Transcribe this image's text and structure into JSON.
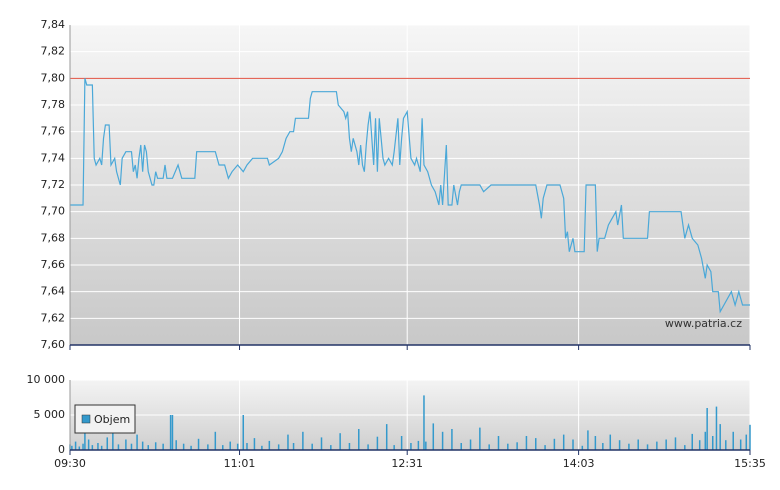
{
  "chart_data": [
    {
      "type": "line",
      "watermark": "www.patria.cz",
      "x": [
        "09:30",
        "09:37",
        "09:38",
        "09:39",
        "09:42",
        "09:43",
        "09:44",
        "09:46",
        "09:47",
        "09:48",
        "09:49",
        "09:51",
        "09:52",
        "09:54",
        "09:55",
        "09:57",
        "09:58",
        "10:00",
        "10:03",
        "10:04",
        "10:05",
        "10:06",
        "10:07",
        "10:08",
        "10:09",
        "10:10",
        "10:11",
        "10:12",
        "10:14",
        "10:15",
        "10:16",
        "10:17",
        "10:20",
        "10:21",
        "10:22",
        "10:25",
        "10:28",
        "10:30",
        "10:37",
        "10:38",
        "10:48",
        "10:50",
        "10:53",
        "10:55",
        "10:57",
        "11:00",
        "11:03",
        "11:05",
        "11:08",
        "11:16",
        "11:17",
        "11:22",
        "11:24",
        "11:26",
        "11:28",
        "11:30",
        "11:31",
        "11:38",
        "11:39",
        "11:40",
        "11:53",
        "11:54",
        "11:57",
        "11:58",
        "11:59",
        "12:00",
        "12:01",
        "12:02",
        "12:04",
        "12:05",
        "12:06",
        "12:07",
        "12:08",
        "12:09",
        "12:10",
        "12:11",
        "12:13",
        "12:14",
        "12:15",
        "12:16",
        "12:18",
        "12:19",
        "12:21",
        "12:23",
        "12:24",
        "12:26",
        "12:27",
        "12:28",
        "12:29",
        "12:31",
        "12:33",
        "12:35",
        "12:36",
        "12:38",
        "12:39",
        "12:40",
        "12:42",
        "12:44",
        "12:46",
        "12:48",
        "12:49",
        "12:50",
        "12:52",
        "12:53",
        "12:55",
        "12:56",
        "12:58",
        "12:59",
        "13:00",
        "13:10",
        "13:12",
        "13:16",
        "13:40",
        "13:42",
        "13:43",
        "13:44",
        "13:46",
        "13:53",
        "13:55",
        "13:56",
        "13:57",
        "13:58",
        "14:00",
        "14:01",
        "14:06",
        "14:07",
        "14:12",
        "14:13",
        "14:14",
        "14:17",
        "14:19",
        "14:21",
        "14:23",
        "14:24",
        "14:26",
        "14:27",
        "14:40",
        "14:41",
        "14:58",
        "15:00",
        "15:02",
        "15:04",
        "15:07",
        "15:09",
        "15:11",
        "15:12",
        "15:14",
        "15:15",
        "15:18",
        "15:19",
        "15:21",
        "15:23",
        "15:25",
        "15:27",
        "15:29",
        "15:31",
        "15:35"
      ],
      "values": [
        7.705,
        7.705,
        7.8,
        7.795,
        7.795,
        7.74,
        7.735,
        7.74,
        7.735,
        7.755,
        7.765,
        7.765,
        7.735,
        7.74,
        7.73,
        7.72,
        7.74,
        7.745,
        7.745,
        7.73,
        7.735,
        7.725,
        7.74,
        7.75,
        7.73,
        7.75,
        7.745,
        7.73,
        7.72,
        7.72,
        7.73,
        7.725,
        7.725,
        7.735,
        7.725,
        7.725,
        7.735,
        7.725,
        7.725,
        7.745,
        7.745,
        7.735,
        7.735,
        7.725,
        7.73,
        7.735,
        7.73,
        7.735,
        7.74,
        7.74,
        7.735,
        7.74,
        7.745,
        7.755,
        7.76,
        7.76,
        7.77,
        7.77,
        7.785,
        7.79,
        7.79,
        7.78,
        7.775,
        7.77,
        7.775,
        7.755,
        7.745,
        7.755,
        7.745,
        7.735,
        7.75,
        7.735,
        7.73,
        7.75,
        7.765,
        7.775,
        7.735,
        7.77,
        7.73,
        7.77,
        7.74,
        7.735,
        7.74,
        7.735,
        7.745,
        7.77,
        7.735,
        7.755,
        7.77,
        7.775,
        7.74,
        7.735,
        7.74,
        7.73,
        7.77,
        7.735,
        7.73,
        7.72,
        7.715,
        7.705,
        7.72,
        7.705,
        7.75,
        7.705,
        7.705,
        7.72,
        7.705,
        7.715,
        7.72,
        7.72,
        7.715,
        7.72,
        7.72,
        7.705,
        7.695,
        7.71,
        7.72,
        7.72,
        7.71,
        7.68,
        7.685,
        7.67,
        7.68,
        7.67,
        7.67,
        7.72,
        7.72,
        7.67,
        7.68,
        7.68,
        7.69,
        7.695,
        7.7,
        7.69,
        7.705,
        7.68,
        7.68,
        7.7,
        7.7,
        7.68,
        7.69,
        7.68,
        7.675,
        7.665,
        7.65,
        7.66,
        7.655,
        7.64,
        7.64,
        7.625,
        7.63,
        7.635,
        7.64,
        7.63,
        7.64,
        7.63,
        7.63
      ],
      "color": "#4aa8d8",
      "reference_line": {
        "value": 7.8,
        "color": "#e05040"
      },
      "xlim": [
        "09:30",
        "15:35"
      ],
      "ylim": [
        7.6,
        7.84
      ],
      "yticks": [
        {
          "value": 7.6,
          "label": "7,60"
        },
        {
          "value": 7.62,
          "label": "7,62"
        },
        {
          "value": 7.64,
          "label": "7,64"
        },
        {
          "value": 7.66,
          "label": "7,66"
        },
        {
          "value": 7.68,
          "label": "7,68"
        },
        {
          "value": 7.7,
          "label": "7,70"
        },
        {
          "value": 7.72,
          "label": "7,72"
        },
        {
          "value": 7.74,
          "label": "7,74"
        },
        {
          "value": 7.76,
          "label": "7,76"
        },
        {
          "value": 7.78,
          "label": "7,78"
        },
        {
          "value": 7.8,
          "label": "7,80"
        },
        {
          "value": 7.82,
          "label": "7,82"
        },
        {
          "value": 7.84,
          "label": "7,84"
        }
      ],
      "grid": true
    },
    {
      "type": "bar",
      "x": [
        "09:30",
        "09:31",
        "09:33",
        "09:35",
        "09:37",
        "09:38",
        "09:40",
        "09:42",
        "09:45",
        "09:47",
        "09:50",
        "09:53",
        "09:56",
        "10:00",
        "10:03",
        "10:06",
        "10:09",
        "10:12",
        "10:16",
        "10:20",
        "10:24",
        "10:25",
        "10:27",
        "10:31",
        "10:35",
        "10:39",
        "10:44",
        "10:48",
        "10:52",
        "10:56",
        "11:00",
        "11:03",
        "11:05",
        "11:09",
        "11:13",
        "11:17",
        "11:22",
        "11:27",
        "11:30",
        "11:35",
        "11:40",
        "11:45",
        "11:50",
        "11:55",
        "12:00",
        "12:05",
        "12:10",
        "12:15",
        "12:20",
        "12:24",
        "12:28",
        "12:33",
        "12:37",
        "12:40",
        "12:41",
        "12:45",
        "12:50",
        "12:55",
        "13:00",
        "13:05",
        "13:10",
        "13:15",
        "13:20",
        "13:25",
        "13:30",
        "13:35",
        "13:40",
        "13:45",
        "13:50",
        "13:55",
        "14:00",
        "14:05",
        "14:08",
        "14:12",
        "14:16",
        "14:20",
        "14:25",
        "14:30",
        "14:35",
        "14:40",
        "14:45",
        "14:50",
        "14:55",
        "15:00",
        "15:04",
        "15:08",
        "15:11",
        "15:12",
        "15:15",
        "15:17",
        "15:19",
        "15:22",
        "15:26",
        "15:30",
        "15:33",
        "15:35"
      ],
      "series": [
        {
          "name": "Objem",
          "color": "#3399cc",
          "values": [
            800,
            600,
            1200,
            500,
            900,
            2500,
            1500,
            700,
            1000,
            600,
            1800,
            2400,
            800,
            1500,
            900,
            2200,
            1200,
            700,
            1100,
            900,
            5000,
            5000,
            1400,
            900,
            600,
            1600,
            800,
            2600,
            700,
            1200,
            900,
            5000,
            1000,
            1700,
            600,
            1300,
            800,
            2200,
            1000,
            2600,
            900,
            1800,
            700,
            2400,
            1000,
            3000,
            800,
            1900,
            3700,
            700,
            2000,
            1000,
            1300,
            7800,
            1200,
            3800,
            2600,
            3000,
            1000,
            1500,
            3200,
            800,
            2000,
            900,
            1100,
            2000,
            1700,
            700,
            1600,
            2200,
            1500,
            600,
            2800,
            2000,
            1000,
            2200,
            1400,
            900,
            1500,
            800,
            1200,
            1500,
            1800,
            700,
            2300,
            1400,
            2600,
            6000,
            2000,
            6200,
            3700,
            1400,
            2600,
            1500,
            2200,
            3600
          ]
        }
      ],
      "xlim": [
        "09:30",
        "15:35"
      ],
      "xticks": [
        "09:30",
        "11:01",
        "12:31",
        "14:03",
        "15:35"
      ],
      "ylim": [
        0,
        10000
      ],
      "yticks": [
        {
          "value": 0,
          "label": "0"
        },
        {
          "value": 5000,
          "label": "5 000"
        },
        {
          "value": 10000,
          "label": "10 000"
        }
      ],
      "grid": true
    }
  ]
}
